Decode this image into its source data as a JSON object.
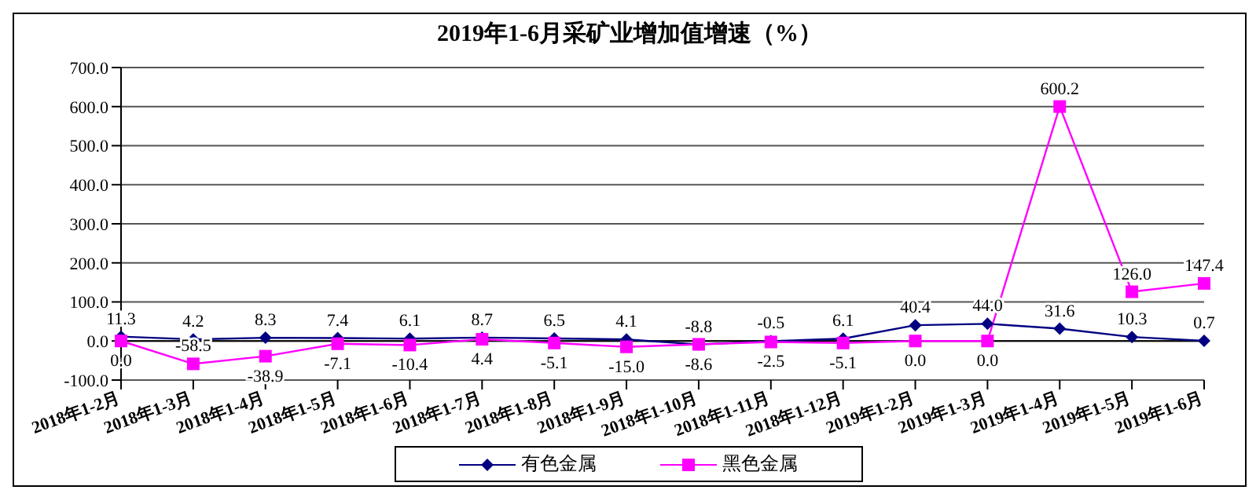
{
  "chart_data": {
    "type": "line",
    "title": "2019年1-6月采矿业增加值增速（%）",
    "categories": [
      "2018年1-2月",
      "2018年1-3月",
      "2018年1-4月",
      "2018年1-5月",
      "2018年1-6月",
      "2018年1-7月",
      "2018年1-8月",
      "2018年1-9月",
      "2018年1-10月",
      "2018年1-11月",
      "2018年1-12月",
      "2019年1-2月",
      "2019年1-3月",
      "2019年1-4月",
      "2019年1-5月",
      "2019年1-6月"
    ],
    "series": [
      {
        "name": "有色金属",
        "color": "#000080",
        "marker": "diamond",
        "values": [
          11.3,
          4.2,
          8.3,
          7.4,
          6.1,
          8.7,
          6.5,
          4.1,
          -8.8,
          -0.5,
          6.1,
          40.4,
          44.0,
          31.6,
          10.3,
          0.7
        ],
        "value_labels": [
          "11.3",
          "4.2",
          "8.3",
          "7.4",
          "6.1",
          "8.7",
          "6.5",
          "4.1",
          "-8.8",
          "-0.5",
          "6.1",
          "40.4",
          "44.0",
          "31.6",
          "10.3",
          "0.7"
        ]
      },
      {
        "name": "黑色金属",
        "color": "#ff00ff",
        "marker": "square",
        "values": [
          0.0,
          -58.5,
          -38.9,
          -7.1,
          -10.4,
          4.4,
          -5.1,
          -15.0,
          -8.6,
          -2.5,
          -5.1,
          0.0,
          0.0,
          600.2,
          126.0,
          147.4
        ],
        "value_labels": [
          "0.0",
          "-58.5",
          "-38.9",
          "-7.1",
          "-10.4",
          "4.4",
          "-5.1",
          "-15.0",
          "-8.6",
          "-2.5",
          "-5.1",
          "0.0",
          "0.0",
          "600.2",
          "126.0",
          "147.4"
        ]
      }
    ],
    "ylim": [
      -100,
      700
    ],
    "yticks": [
      {
        "value": -100,
        "label": "-100.0"
      },
      {
        "value": 0,
        "label": "0.0"
      },
      {
        "value": 100,
        "label": "100.0"
      },
      {
        "value": 200,
        "label": "200.0"
      },
      {
        "value": 300,
        "label": "300.0"
      },
      {
        "value": 400,
        "label": "400.0"
      },
      {
        "value": 500,
        "label": "500.0"
      },
      {
        "value": 600,
        "label": "600.0"
      },
      {
        "value": 700,
        "label": "700.0"
      }
    ],
    "grid": "y",
    "legend": "bottom"
  }
}
